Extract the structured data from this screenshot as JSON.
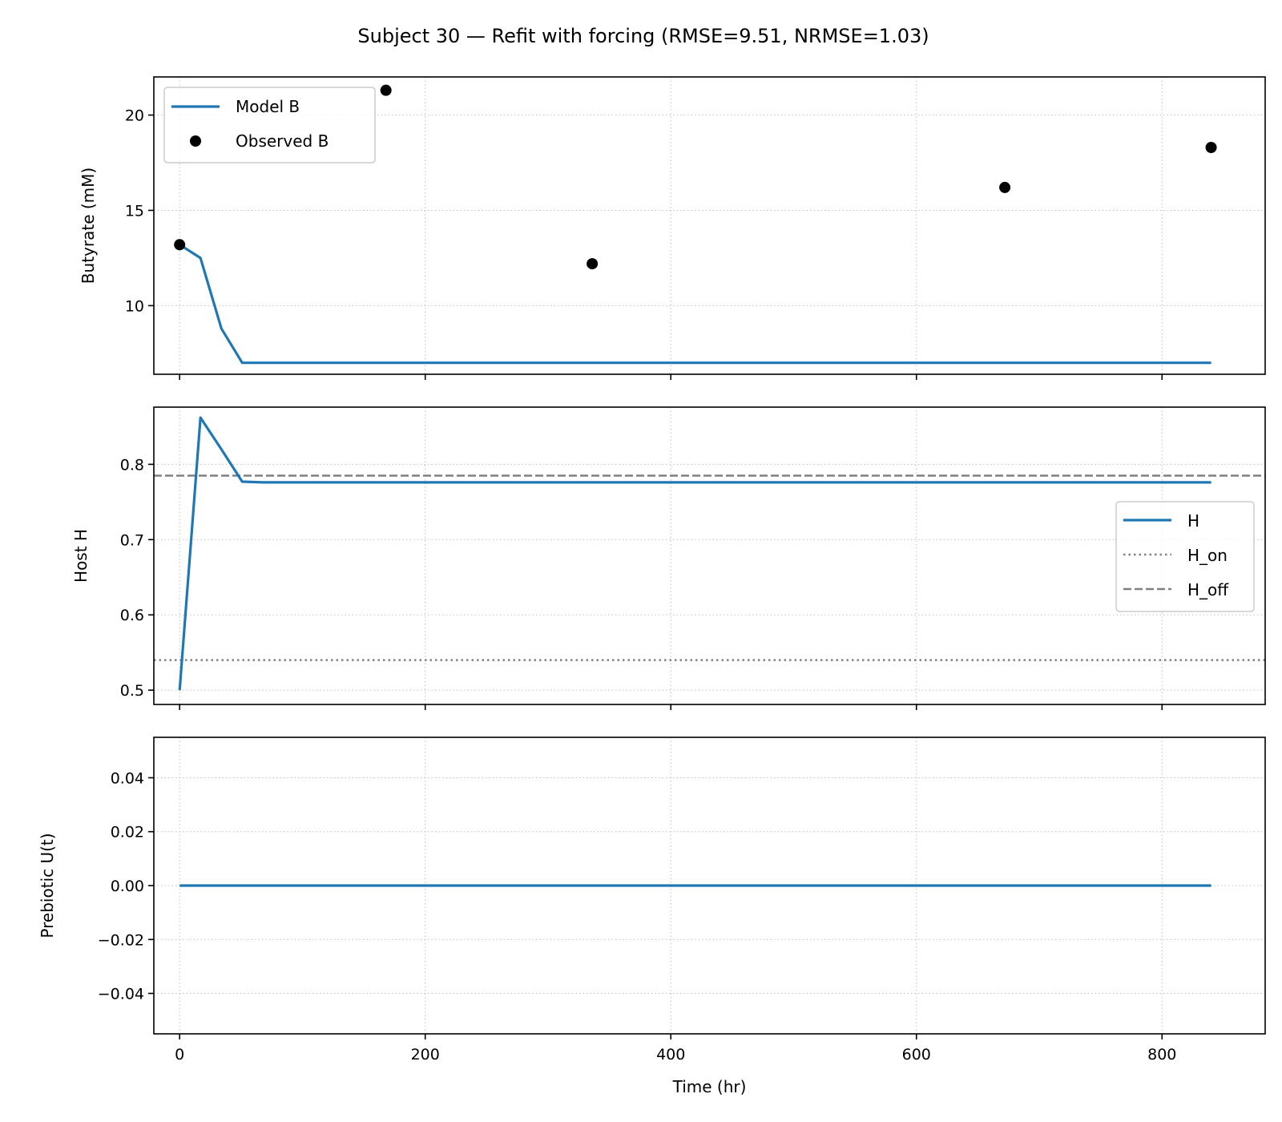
{
  "title": "Subject 30 — Refit with forcing (RMSE=9.51, NRMSE=1.03)",
  "colors": {
    "model": "#1f77b4",
    "observed": "#000000",
    "threshold": "#808080"
  },
  "chart_data": [
    {
      "type": "line",
      "ylabel": "Butyrate (mM)",
      "xlim": [
        -21,
        884
      ],
      "ylim": [
        6.4,
        22.0
      ],
      "xticks": [
        0,
        200,
        400,
        600,
        800
      ],
      "yticks": [
        10,
        15,
        20
      ],
      "grid": true,
      "legend_position": "upper-left",
      "series": [
        {
          "name": "Model B",
          "kind": "line",
          "x": [
            0,
            17,
            34,
            51,
            68,
            100,
            200,
            300,
            400,
            500,
            600,
            700,
            800,
            840
          ],
          "y": [
            13.2,
            12.5,
            8.8,
            7.0,
            7.0,
            7.0,
            7.0,
            7.0,
            7.0,
            7.0,
            7.0,
            7.0,
            7.0,
            7.0
          ]
        },
        {
          "name": "Observed B",
          "kind": "scatter",
          "x": [
            0,
            168,
            336,
            672,
            840
          ],
          "y": [
            13.2,
            21.3,
            12.2,
            16.2,
            18.3
          ]
        }
      ]
    },
    {
      "type": "line",
      "ylabel": "Host H",
      "xlim": [
        -21,
        884
      ],
      "ylim": [
        0.481,
        0.876
      ],
      "xticks": [
        0,
        200,
        400,
        600,
        800
      ],
      "yticks": [
        0.5,
        0.6,
        0.7,
        0.8
      ],
      "grid": true,
      "legend_position": "center-right",
      "series": [
        {
          "name": "H",
          "kind": "line",
          "x": [
            0,
            17,
            34,
            51,
            68,
            100,
            200,
            400,
            600,
            800,
            840
          ],
          "y": [
            0.5,
            0.862,
            0.82,
            0.777,
            0.776,
            0.776,
            0.776,
            0.776,
            0.776,
            0.776,
            0.776
          ]
        }
      ],
      "hlines": [
        {
          "name": "H_on",
          "y": 0.54,
          "style": "dotted"
        },
        {
          "name": "H_off",
          "y": 0.785,
          "style": "dashed"
        }
      ]
    },
    {
      "type": "line",
      "ylabel": "Prebiotic U(t)",
      "xlabel": "Time (hr)",
      "xlim": [
        -21,
        884
      ],
      "ylim": [
        -0.055,
        0.055
      ],
      "xticks": [
        0,
        200,
        400,
        600,
        800
      ],
      "yticks": [
        -0.04,
        -0.02,
        0.0,
        0.02,
        0.04
      ],
      "ytick_labels": [
        "−0.04",
        "−0.02",
        "0.00",
        "0.02",
        "0.04"
      ],
      "grid": true,
      "series": [
        {
          "name": "",
          "kind": "line",
          "x": [
            0,
            840
          ],
          "y": [
            0,
            0
          ]
        }
      ]
    }
  ]
}
